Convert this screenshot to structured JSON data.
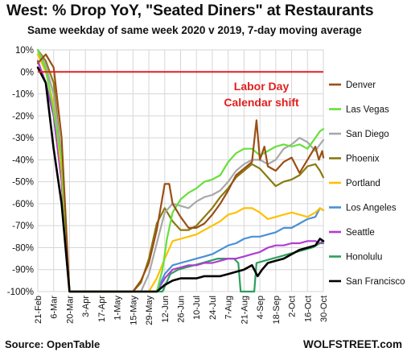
{
  "header": {
    "title": "West: % Drop YoY, \"Seated Diners\" at Restaurants",
    "subtitle": "Same weekday of same week 2020 v 2019, 7-day moving average"
  },
  "footer": {
    "source": "Source: OpenTable",
    "brand": "WOLFSTREET.com"
  },
  "chart_data": {
    "type": "line",
    "title": "West: % Drop YoY, \"Seated Diners\" at Restaurants",
    "subtitle": "Same weekday of same week 2020 v 2019, 7-day moving average",
    "ylim": [
      -100,
      10
    ],
    "yticks": [
      "10%",
      "0%",
      "-10%",
      "-20%",
      "-30%",
      "-40%",
      "-50%",
      "-60%",
      "-70%",
      "-80%",
      "-90%",
      "-100%"
    ],
    "xticks": [
      "21-Feb",
      "6-Mar",
      "20-Mar",
      "3-Apr",
      "17-Apr",
      "1-May",
      "15-May",
      "29-May",
      "12-Jun",
      "26-Jun",
      "10-Jul",
      "24-Jul",
      "7-Aug",
      "21-Aug",
      "4-Sep",
      "18-Sep",
      "2-Oct",
      "16-Oct",
      "30-Oct"
    ],
    "annotation": "Labor Day\nCalendar shift",
    "annotation_color": "#e0201f",
    "zero_line_color": "#e0201f",
    "legend_position": "right",
    "x_note": "x values are days after 21-Feb (0 = 21-Feb, 252 = 30-Oct)",
    "series": [
      {
        "name": "Denver",
        "color": "#9a4f14",
        "points": [
          [
            0,
            4
          ],
          [
            7,
            8
          ],
          [
            14,
            2
          ],
          [
            21,
            -30
          ],
          [
            28,
            -100
          ],
          [
            84,
            -100
          ],
          [
            91,
            -95
          ],
          [
            98,
            -87
          ],
          [
            105,
            -72
          ],
          [
            109,
            -60
          ],
          [
            112,
            -51
          ],
          [
            116,
            -51
          ],
          [
            119,
            -60
          ],
          [
            126,
            -66
          ],
          [
            133,
            -71
          ],
          [
            140,
            -71
          ],
          [
            147,
            -69
          ],
          [
            154,
            -65
          ],
          [
            161,
            -60
          ],
          [
            168,
            -54
          ],
          [
            175,
            -47
          ],
          [
            182,
            -44
          ],
          [
            189,
            -41
          ],
          [
            193,
            -22
          ],
          [
            196,
            -40
          ],
          [
            200,
            -34
          ],
          [
            203,
            -43
          ],
          [
            210,
            -45
          ],
          [
            217,
            -41
          ],
          [
            224,
            -39
          ],
          [
            231,
            -46
          ],
          [
            238,
            -40
          ],
          [
            245,
            -34
          ],
          [
            248,
            -40
          ],
          [
            251,
            -36
          ],
          [
            252,
            -39
          ]
        ]
      },
      {
        "name": "Las Vegas",
        "color": "#66e03a",
        "points": [
          [
            0,
            10
          ],
          [
            7,
            1
          ],
          [
            14,
            -18
          ],
          [
            21,
            -40
          ],
          [
            28,
            -100
          ],
          [
            105,
            -100
          ],
          [
            110,
            -90
          ],
          [
            114,
            -76
          ],
          [
            119,
            -64
          ],
          [
            126,
            -58
          ],
          [
            133,
            -55
          ],
          [
            140,
            -53
          ],
          [
            147,
            -50
          ],
          [
            154,
            -49
          ],
          [
            161,
            -47
          ],
          [
            168,
            -41
          ],
          [
            175,
            -37
          ],
          [
            182,
            -35
          ],
          [
            189,
            -35
          ],
          [
            196,
            -38
          ],
          [
            203,
            -36
          ],
          [
            210,
            -34
          ],
          [
            217,
            -33
          ],
          [
            224,
            -34
          ],
          [
            231,
            -33
          ],
          [
            238,
            -35
          ],
          [
            245,
            -30
          ],
          [
            249,
            -27
          ],
          [
            252,
            -26
          ]
        ]
      },
      {
        "name": "San Diego",
        "color": "#a8a8a8",
        "points": [
          [
            0,
            10
          ],
          [
            7,
            3
          ],
          [
            14,
            -10
          ],
          [
            21,
            -40
          ],
          [
            28,
            -100
          ],
          [
            91,
            -100
          ],
          [
            98,
            -92
          ],
          [
            105,
            -78
          ],
          [
            112,
            -64
          ],
          [
            119,
            -60
          ],
          [
            126,
            -61
          ],
          [
            133,
            -62
          ],
          [
            140,
            -59
          ],
          [
            147,
            -57
          ],
          [
            154,
            -56
          ],
          [
            161,
            -54
          ],
          [
            168,
            -50
          ],
          [
            175,
            -45
          ],
          [
            182,
            -42
          ],
          [
            189,
            -40
          ],
          [
            196,
            -40
          ],
          [
            203,
            -42
          ],
          [
            210,
            -40
          ],
          [
            217,
            -35
          ],
          [
            224,
            -33
          ],
          [
            231,
            -30
          ],
          [
            238,
            -32
          ],
          [
            245,
            -36
          ],
          [
            249,
            -33
          ],
          [
            252,
            -31
          ]
        ]
      },
      {
        "name": "Phoenix",
        "color": "#8a7a10",
        "points": [
          [
            0,
            10
          ],
          [
            7,
            5
          ],
          [
            14,
            -5
          ],
          [
            21,
            -40
          ],
          [
            28,
            -100
          ],
          [
            84,
            -100
          ],
          [
            91,
            -96
          ],
          [
            98,
            -85
          ],
          [
            105,
            -69
          ],
          [
            112,
            -62
          ],
          [
            119,
            -68
          ],
          [
            126,
            -72
          ],
          [
            133,
            -72
          ],
          [
            140,
            -70
          ],
          [
            147,
            -66
          ],
          [
            154,
            -62
          ],
          [
            161,
            -57
          ],
          [
            168,
            -53
          ],
          [
            175,
            -48
          ],
          [
            182,
            -45
          ],
          [
            189,
            -42
          ],
          [
            196,
            -44
          ],
          [
            203,
            -48
          ],
          [
            210,
            -52
          ],
          [
            217,
            -50
          ],
          [
            224,
            -49
          ],
          [
            231,
            -47
          ],
          [
            238,
            -43
          ],
          [
            245,
            -42
          ],
          [
            249,
            -45
          ],
          [
            252,
            -48
          ]
        ]
      },
      {
        "name": "Portland",
        "color": "#ffc000",
        "points": [
          [
            0,
            8
          ],
          [
            7,
            0
          ],
          [
            14,
            -15
          ],
          [
            21,
            -45
          ],
          [
            28,
            -100
          ],
          [
            98,
            -100
          ],
          [
            105,
            -94
          ],
          [
            112,
            -85
          ],
          [
            119,
            -77
          ],
          [
            126,
            -76
          ],
          [
            133,
            -75
          ],
          [
            140,
            -74
          ],
          [
            147,
            -72
          ],
          [
            154,
            -70
          ],
          [
            161,
            -68
          ],
          [
            168,
            -65
          ],
          [
            175,
            -64
          ],
          [
            182,
            -62
          ],
          [
            189,
            -62
          ],
          [
            196,
            -64
          ],
          [
            203,
            -67
          ],
          [
            210,
            -66
          ],
          [
            217,
            -65
          ],
          [
            224,
            -64
          ],
          [
            231,
            -65
          ],
          [
            238,
            -66
          ],
          [
            245,
            -64
          ],
          [
            249,
            -62
          ],
          [
            252,
            -63
          ]
        ]
      },
      {
        "name": "Los Angeles",
        "color": "#4a90d6",
        "points": [
          [
            0,
            8
          ],
          [
            7,
            2
          ],
          [
            14,
            -10
          ],
          [
            21,
            -45
          ],
          [
            28,
            -100
          ],
          [
            105,
            -100
          ],
          [
            112,
            -92
          ],
          [
            119,
            -88
          ],
          [
            126,
            -87
          ],
          [
            133,
            -86
          ],
          [
            140,
            -85
          ],
          [
            147,
            -84
          ],
          [
            154,
            -83
          ],
          [
            161,
            -81
          ],
          [
            168,
            -79
          ],
          [
            175,
            -78
          ],
          [
            182,
            -76
          ],
          [
            189,
            -75
          ],
          [
            196,
            -75
          ],
          [
            203,
            -74
          ],
          [
            210,
            -73
          ],
          [
            217,
            -71
          ],
          [
            224,
            -71
          ],
          [
            231,
            -69
          ],
          [
            238,
            -67
          ],
          [
            245,
            -66
          ],
          [
            249,
            -62
          ],
          [
            252,
            -63
          ]
        ]
      },
      {
        "name": "Seattle",
        "color": "#b13bd5",
        "points": [
          [
            0,
            5
          ],
          [
            7,
            -5
          ],
          [
            14,
            -20
          ],
          [
            21,
            -50
          ],
          [
            28,
            -100
          ],
          [
            105,
            -100
          ],
          [
            112,
            -94
          ],
          [
            119,
            -90
          ],
          [
            126,
            -89
          ],
          [
            133,
            -88
          ],
          [
            140,
            -88
          ],
          [
            147,
            -87
          ],
          [
            154,
            -87
          ],
          [
            161,
            -86
          ],
          [
            168,
            -85
          ],
          [
            175,
            -85
          ],
          [
            182,
            -84
          ],
          [
            189,
            -83
          ],
          [
            196,
            -82
          ],
          [
            203,
            -80
          ],
          [
            210,
            -79
          ],
          [
            217,
            -79
          ],
          [
            224,
            -78
          ],
          [
            231,
            -78
          ],
          [
            238,
            -77
          ],
          [
            245,
            -77
          ],
          [
            249,
            -78
          ],
          [
            252,
            -77
          ]
        ]
      },
      {
        "name": "Honolulu",
        "color": "#2e9e5e",
        "points": [
          [
            0,
            5
          ],
          [
            7,
            -5
          ],
          [
            14,
            -20
          ],
          [
            21,
            -50
          ],
          [
            28,
            -100
          ],
          [
            110,
            -100
          ],
          [
            117,
            -92
          ],
          [
            124,
            -90
          ],
          [
            131,
            -89
          ],
          [
            138,
            -88
          ],
          [
            145,
            -87
          ],
          [
            152,
            -86
          ],
          [
            159,
            -85
          ],
          [
            166,
            -85
          ],
          [
            173,
            -85
          ],
          [
            177,
            -87
          ],
          [
            179,
            -100
          ],
          [
            191,
            -100
          ],
          [
            193,
            -87
          ],
          [
            200,
            -86
          ],
          [
            207,
            -85
          ],
          [
            214,
            -84
          ],
          [
            221,
            -83
          ],
          [
            228,
            -82
          ],
          [
            235,
            -81
          ],
          [
            242,
            -80
          ],
          [
            249,
            -78
          ],
          [
            252,
            -78
          ]
        ]
      },
      {
        "name": "San Francisco",
        "color": "#000000",
        "points": [
          [
            0,
            2
          ],
          [
            7,
            -5
          ],
          [
            14,
            -35
          ],
          [
            21,
            -60
          ],
          [
            28,
            -100
          ],
          [
            105,
            -100
          ],
          [
            112,
            -97
          ],
          [
            119,
            -95
          ],
          [
            126,
            -94
          ],
          [
            133,
            -94
          ],
          [
            140,
            -94
          ],
          [
            147,
            -93
          ],
          [
            154,
            -93
          ],
          [
            161,
            -93
          ],
          [
            168,
            -92
          ],
          [
            175,
            -91
          ],
          [
            182,
            -90
          ],
          [
            189,
            -88
          ],
          [
            194,
            -93
          ],
          [
            198,
            -90
          ],
          [
            203,
            -87
          ],
          [
            210,
            -86
          ],
          [
            217,
            -85
          ],
          [
            224,
            -83
          ],
          [
            231,
            -81
          ],
          [
            238,
            -80
          ],
          [
            245,
            -79
          ],
          [
            249,
            -76
          ],
          [
            252,
            -77
          ]
        ]
      }
    ]
  }
}
